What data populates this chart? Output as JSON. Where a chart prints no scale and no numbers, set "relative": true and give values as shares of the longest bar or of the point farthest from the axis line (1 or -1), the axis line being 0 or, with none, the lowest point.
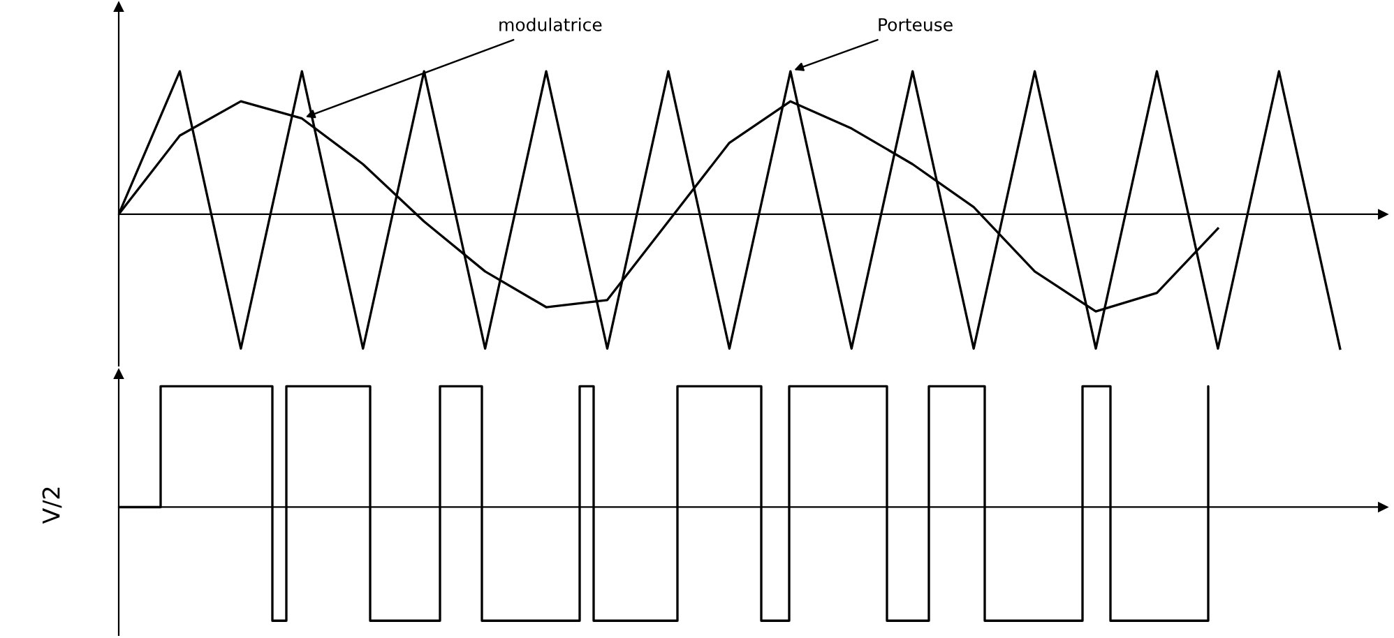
{
  "chart_data": [
    {
      "type": "line",
      "relative": true,
      "marker": "none",
      "line_style": "solid",
      "annotations": [
        "modulatrice",
        "Porteuse"
      ],
      "categories": [
        null,
        null,
        null,
        null,
        null,
        null,
        null,
        null,
        null,
        null,
        null,
        null,
        null,
        null,
        null,
        null,
        null,
        null,
        null,
        null,
        null
      ],
      "series": [
        {
          "color": "#000000",
          "values": [
            0,
            1,
            -0.94,
            1,
            -0.94,
            1,
            -0.94,
            1,
            -0.94,
            1,
            -0.94,
            1,
            -0.94,
            1,
            -0.94,
            1,
            -0.94,
            1,
            -0.94,
            1,
            -0.94
          ]
        },
        {
          "color": "#000000",
          "values": [
            0,
            0.55,
            0.79,
            0.67,
            0.35,
            -0.05,
            -0.4,
            -0.65,
            -0.6,
            -0.05,
            0.5,
            0.79,
            0.6,
            0.35,
            0.05,
            -0.4,
            -0.68,
            -0.55,
            -0.1,
            null,
            null
          ]
        }
      ]
    },
    {
      "type": "step",
      "relative": true,
      "ylabel": "V/2",
      "categories": [
        null,
        null,
        null,
        null,
        null,
        null,
        null,
        null,
        null,
        null,
        null,
        null,
        null,
        null,
        null,
        null,
        null,
        null,
        null,
        null,
        null,
        null,
        null,
        null,
        null,
        null,
        null,
        null,
        null,
        null,
        null,
        null,
        null,
        null,
        null,
        null,
        null,
        null,
        null,
        null,
        null,
        null,
        null,
        null,
        null,
        null,
        null,
        null,
        null,
        null,
        null,
        null,
        null,
        null,
        null,
        null,
        null,
        null,
        null,
        null,
        null,
        null,
        null,
        null,
        null,
        null,
        null,
        null,
        null,
        null,
        null,
        null,
        null,
        null,
        null,
        null,
        null,
        null,
        null
      ],
      "series": [
        {
          "color": "#000000",
          "values": [
            0,
            0,
            0,
            1,
            1,
            1,
            1,
            1,
            1,
            1,
            1,
            -0.94,
            1,
            1,
            1,
            1,
            1,
            1,
            -0.94,
            -0.94,
            -0.94,
            -0.94,
            -0.94,
            1,
            1,
            1,
            -0.94,
            -0.94,
            -0.94,
            -0.94,
            -0.94,
            -0.94,
            -0.94,
            1,
            -0.94,
            -0.94,
            -0.94,
            -0.94,
            -0.94,
            -0.94,
            1,
            1,
            1,
            1,
            1,
            1,
            -0.94,
            -0.94,
            1,
            1,
            1,
            1,
            1,
            1,
            1,
            -0.94,
            -0.94,
            -0.94,
            1,
            1,
            1,
            1,
            -0.94,
            -0.94,
            -0.94,
            -0.94,
            -0.94,
            -0.94,
            -0.94,
            1,
            1,
            -0.94,
            -0.94,
            -0.94,
            -0.94,
            -0.94,
            -0.94,
            -0.94,
            1
          ]
        }
      ]
    }
  ]
}
